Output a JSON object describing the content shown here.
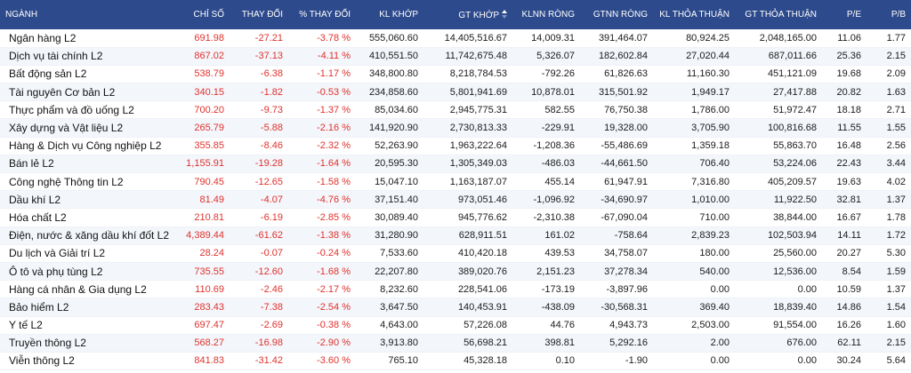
{
  "colors": {
    "header_bg": "#2d4a8c",
    "negative": "#e0322d",
    "row_alt": "#f3f6fb"
  },
  "columns": {
    "name": "NGÀNH",
    "index": "CHỈ SỐ",
    "change": "THAY ĐỔI",
    "pct_change": "% THAY ĐỔI",
    "kl_khop": "KL KHỚP",
    "gt_khop": "GT KHỚP",
    "klnn_rong": "KLNN RÒNG",
    "gtnn_rong": "GTNN RÒNG",
    "kl_thoa_thuan": "KL THỎA THUẬN",
    "gt_thoa_thuan": "GT THỎA THUẬN",
    "pe": "P/E",
    "pb": "P/B"
  },
  "sort_icon": "sort-icon",
  "rows": [
    {
      "name": "Ngân hàng L2",
      "index": "691.98",
      "change": "-27.21",
      "pct": "-3.78 %",
      "kl_khop": "555,060.60",
      "gt_khop": "14,405,516.67",
      "klnn": "14,009.31",
      "gtnn": "391,464.07",
      "kl_tt": "80,924.25",
      "gt_tt": "2,048,165.00",
      "pe": "11.06",
      "pb": "1.77"
    },
    {
      "name": "Dịch vụ tài chính L2",
      "index": "867.02",
      "change": "-37.13",
      "pct": "-4.11 %",
      "kl_khop": "410,551.50",
      "gt_khop": "11,742,675.48",
      "klnn": "5,326.07",
      "gtnn": "182,602.84",
      "kl_tt": "27,020.44",
      "gt_tt": "687,011.66",
      "pe": "25.36",
      "pb": "2.15"
    },
    {
      "name": "Bất động sản L2",
      "index": "538.79",
      "change": "-6.38",
      "pct": "-1.17 %",
      "kl_khop": "348,800.80",
      "gt_khop": "8,218,784.53",
      "klnn": "-792.26",
      "gtnn": "61,826.63",
      "kl_tt": "11,160.30",
      "gt_tt": "451,121.09",
      "pe": "19.68",
      "pb": "2.09"
    },
    {
      "name": "Tài nguyên Cơ bản L2",
      "index": "340.15",
      "change": "-1.82",
      "pct": "-0.53 %",
      "kl_khop": "234,858.60",
      "gt_khop": "5,801,941.69",
      "klnn": "10,878.01",
      "gtnn": "315,501.92",
      "kl_tt": "1,949.17",
      "gt_tt": "27,417.88",
      "pe": "20.82",
      "pb": "1.63"
    },
    {
      "name": "Thực phẩm và đồ uống L2",
      "index": "700.20",
      "change": "-9.73",
      "pct": "-1.37 %",
      "kl_khop": "85,034.60",
      "gt_khop": "2,945,775.31",
      "klnn": "582.55",
      "gtnn": "76,750.38",
      "kl_tt": "1,786.00",
      "gt_tt": "51,972.47",
      "pe": "18.18",
      "pb": "2.71"
    },
    {
      "name": "Xây dựng và Vật liệu L2",
      "index": "265.79",
      "change": "-5.88",
      "pct": "-2.16 %",
      "kl_khop": "141,920.90",
      "gt_khop": "2,730,813.33",
      "klnn": "-229.91",
      "gtnn": "19,328.00",
      "kl_tt": "3,705.90",
      "gt_tt": "100,816.68",
      "pe": "11.55",
      "pb": "1.55"
    },
    {
      "name": "Hàng & Dịch vụ Công nghiệp L2",
      "index": "355.85",
      "change": "-8.46",
      "pct": "-2.32 %",
      "kl_khop": "52,263.90",
      "gt_khop": "1,963,222.64",
      "klnn": "-1,208.36",
      "gtnn": "-55,486.69",
      "kl_tt": "1,359.18",
      "gt_tt": "55,863.70",
      "pe": "16.48",
      "pb": "2.56"
    },
    {
      "name": "Bán lẻ L2",
      "index": "1,155.91",
      "change": "-19.28",
      "pct": "-1.64 %",
      "kl_khop": "20,595.30",
      "gt_khop": "1,305,349.03",
      "klnn": "-486.03",
      "gtnn": "-44,661.50",
      "kl_tt": "706.40",
      "gt_tt": "53,224.06",
      "pe": "22.43",
      "pb": "3.44"
    },
    {
      "name": "Công nghệ Thông tin L2",
      "index": "790.45",
      "change": "-12.65",
      "pct": "-1.58 %",
      "kl_khop": "15,047.10",
      "gt_khop": "1,163,187.07",
      "klnn": "455.14",
      "gtnn": "61,947.91",
      "kl_tt": "7,316.80",
      "gt_tt": "405,209.57",
      "pe": "19.63",
      "pb": "4.02"
    },
    {
      "name": "Dầu khí L2",
      "index": "81.49",
      "change": "-4.07",
      "pct": "-4.76 %",
      "kl_khop": "37,151.40",
      "gt_khop": "973,051.46",
      "klnn": "-1,096.92",
      "gtnn": "-34,690.97",
      "kl_tt": "1,010.00",
      "gt_tt": "11,922.50",
      "pe": "32.81",
      "pb": "1.37"
    },
    {
      "name": "Hóa chất L2",
      "index": "210.81",
      "change": "-6.19",
      "pct": "-2.85 %",
      "kl_khop": "30,089.40",
      "gt_khop": "945,776.62",
      "klnn": "-2,310.38",
      "gtnn": "-67,090.04",
      "kl_tt": "710.00",
      "gt_tt": "38,844.00",
      "pe": "16.67",
      "pb": "1.78"
    },
    {
      "name": "Điện, nước & xăng dầu khí đốt L2",
      "index": "4,389.44",
      "change": "-61.62",
      "pct": "-1.38 %",
      "kl_khop": "31,280.90",
      "gt_khop": "628,911.51",
      "klnn": "161.02",
      "gtnn": "-758.64",
      "kl_tt": "2,839.23",
      "gt_tt": "102,503.94",
      "pe": "14.11",
      "pb": "1.72"
    },
    {
      "name": "Du lịch và Giải trí L2",
      "index": "28.24",
      "change": "-0.07",
      "pct": "-0.24 %",
      "kl_khop": "7,533.60",
      "gt_khop": "410,420.18",
      "klnn": "439.53",
      "gtnn": "34,758.07",
      "kl_tt": "180.00",
      "gt_tt": "25,560.00",
      "pe": "20.27",
      "pb": "5.30"
    },
    {
      "name": "Ô tô và phụ tùng L2",
      "index": "735.55",
      "change": "-12.60",
      "pct": "-1.68 %",
      "kl_khop": "22,207.80",
      "gt_khop": "389,020.76",
      "klnn": "2,151.23",
      "gtnn": "37,278.34",
      "kl_tt": "540.00",
      "gt_tt": "12,536.00",
      "pe": "8.54",
      "pb": "1.59"
    },
    {
      "name": "Hàng cá nhân & Gia dụng L2",
      "index": "110.69",
      "change": "-2.46",
      "pct": "-2.17 %",
      "kl_khop": "8,232.60",
      "gt_khop": "228,541.06",
      "klnn": "-173.19",
      "gtnn": "-3,897.96",
      "kl_tt": "0.00",
      "gt_tt": "0.00",
      "pe": "10.59",
      "pb": "1.37"
    },
    {
      "name": "Bảo hiểm L2",
      "index": "283.43",
      "change": "-7.38",
      "pct": "-2.54 %",
      "kl_khop": "3,647.50",
      "gt_khop": "140,453.91",
      "klnn": "-438.09",
      "gtnn": "-30,568.31",
      "kl_tt": "369.40",
      "gt_tt": "18,839.40",
      "pe": "14.86",
      "pb": "1.54"
    },
    {
      "name": "Y tế L2",
      "index": "697.47",
      "change": "-2.69",
      "pct": "-0.38 %",
      "kl_khop": "4,643.00",
      "gt_khop": "57,226.08",
      "klnn": "44.76",
      "gtnn": "4,943.73",
      "kl_tt": "2,503.00",
      "gt_tt": "91,554.00",
      "pe": "16.26",
      "pb": "1.60"
    },
    {
      "name": "Truyền thông L2",
      "index": "568.27",
      "change": "-16.98",
      "pct": "-2.90 %",
      "kl_khop": "3,913.80",
      "gt_khop": "56,698.21",
      "klnn": "398.81",
      "gtnn": "5,292.16",
      "kl_tt": "2.00",
      "gt_tt": "676.00",
      "pe": "62.11",
      "pb": "2.15"
    },
    {
      "name": "Viễn thông L2",
      "index": "841.83",
      "change": "-31.42",
      "pct": "-3.60 %",
      "kl_khop": "765.10",
      "gt_khop": "45,328.18",
      "klnn": "0.10",
      "gtnn": "-1.90",
      "kl_tt": "0.00",
      "gt_tt": "0.00",
      "pe": "30.24",
      "pb": "5.64"
    }
  ]
}
